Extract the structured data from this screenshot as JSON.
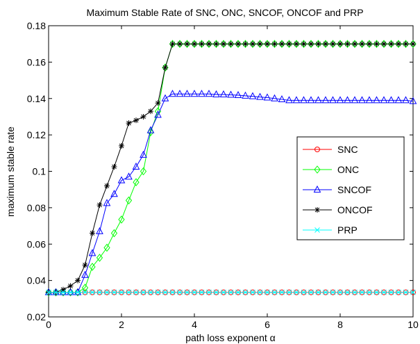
{
  "chart_data": {
    "type": "line",
    "title": "Maximum Stable Rate of SNC, ONC, SNCOF, ONCOF and PRP",
    "xlabel": "path loss exponent α",
    "ylabel": "maximum stable rate",
    "xlim": [
      0,
      10
    ],
    "ylim": [
      0.02,
      0.18
    ],
    "xticks": [
      "0",
      "2",
      "4",
      "6",
      "8",
      "10"
    ],
    "yticks": [
      "0.02",
      "0.04",
      "0.06",
      "0.08",
      "0.1",
      "0.12",
      "0.14",
      "0.16",
      "0.18"
    ],
    "grid": false,
    "legend_position": "right",
    "x": [
      0,
      0.2,
      0.4,
      0.6,
      0.8,
      1.0,
      1.2,
      1.4,
      1.6,
      1.8,
      2.0,
      2.2,
      2.4,
      2.6,
      2.8,
      3.0,
      3.2,
      3.4,
      3.6,
      3.8,
      4.0,
      4.2,
      4.4,
      4.6,
      4.8,
      5.0,
      5.2,
      5.4,
      5.6,
      5.8,
      6.0,
      6.2,
      6.4,
      6.6,
      6.8,
      7.0,
      7.2,
      7.4,
      7.6,
      7.8,
      8.0,
      8.2,
      8.4,
      8.6,
      8.8,
      9.0,
      9.2,
      9.4,
      9.6,
      9.8,
      10.0
    ],
    "series": [
      {
        "name": "SNC",
        "color": "#ff0000",
        "marker": "circle",
        "values": [
          0.0335,
          0.0335,
          0.0335,
          0.0335,
          0.0335,
          0.0335,
          0.0335,
          0.0335,
          0.0335,
          0.0335,
          0.0335,
          0.0335,
          0.0335,
          0.0335,
          0.0335,
          0.0335,
          0.0335,
          0.0335,
          0.0335,
          0.0335,
          0.0335,
          0.0335,
          0.0335,
          0.0335,
          0.0335,
          0.0335,
          0.0335,
          0.0335,
          0.0335,
          0.0335,
          0.0335,
          0.0335,
          0.0335,
          0.0335,
          0.0335,
          0.0335,
          0.0335,
          0.0335,
          0.0335,
          0.0335,
          0.0335,
          0.0335,
          0.0335,
          0.0335,
          0.0335,
          0.0335,
          0.0335,
          0.0335,
          0.0335,
          0.0335,
          0.0335
        ]
      },
      {
        "name": "ONC",
        "color": "#00ff00",
        "marker": "diamond",
        "values": [
          0.0335,
          0.0335,
          0.0335,
          0.0335,
          0.0335,
          0.036,
          0.0475,
          0.0525,
          0.058,
          0.066,
          0.0735,
          0.084,
          0.094,
          0.1,
          0.1215,
          0.133,
          0.157,
          0.17,
          0.17,
          0.17,
          0.17,
          0.17,
          0.17,
          0.17,
          0.17,
          0.17,
          0.17,
          0.17,
          0.17,
          0.17,
          0.17,
          0.17,
          0.17,
          0.17,
          0.17,
          0.17,
          0.17,
          0.17,
          0.17,
          0.17,
          0.17,
          0.17,
          0.17,
          0.17,
          0.17,
          0.17,
          0.17,
          0.17,
          0.17,
          0.17,
          0.17
        ]
      },
      {
        "name": "SNCOF",
        "color": "#0000ff",
        "marker": "triangle",
        "values": [
          0.0335,
          0.0335,
          0.0335,
          0.0335,
          0.0335,
          0.043,
          0.055,
          0.067,
          0.0825,
          0.0875,
          0.095,
          0.097,
          0.1025,
          0.109,
          0.1225,
          0.131,
          0.14,
          0.1425,
          0.1425,
          0.1425,
          0.1425,
          0.1425,
          0.1425,
          0.1422,
          0.1422,
          0.142,
          0.1418,
          0.1415,
          0.1412,
          0.1408,
          0.1405,
          0.14,
          0.1395,
          0.139,
          0.139,
          0.139,
          0.139,
          0.139,
          0.139,
          0.139,
          0.139,
          0.139,
          0.139,
          0.139,
          0.139,
          0.139,
          0.139,
          0.139,
          0.139,
          0.139,
          0.1385
        ]
      },
      {
        "name": "ONCOF",
        "color": "#000000",
        "marker": "star",
        "values": [
          0.0335,
          0.0335,
          0.035,
          0.037,
          0.04,
          0.0485,
          0.066,
          0.0815,
          0.092,
          0.1025,
          0.114,
          0.1265,
          0.128,
          0.13,
          0.133,
          0.1375,
          0.157,
          0.17,
          0.17,
          0.17,
          0.17,
          0.17,
          0.17,
          0.17,
          0.17,
          0.17,
          0.17,
          0.17,
          0.17,
          0.17,
          0.17,
          0.17,
          0.17,
          0.17,
          0.17,
          0.17,
          0.17,
          0.17,
          0.17,
          0.17,
          0.17,
          0.17,
          0.17,
          0.17,
          0.17,
          0.17,
          0.17,
          0.17,
          0.17,
          0.17,
          0.17
        ]
      },
      {
        "name": "PRP",
        "color": "#00ffff",
        "marker": "x",
        "values": [
          0.0335,
          0.0335,
          0.0335,
          0.0335,
          0.0335,
          0.0335,
          0.0335,
          0.0335,
          0.0335,
          0.0335,
          0.0335,
          0.0335,
          0.0335,
          0.0335,
          0.0335,
          0.0335,
          0.0335,
          0.0335,
          0.0335,
          0.0335,
          0.0335,
          0.0335,
          0.0335,
          0.0335,
          0.0335,
          0.0335,
          0.0335,
          0.0335,
          0.0335,
          0.0335,
          0.0335,
          0.0335,
          0.0335,
          0.0335,
          0.0335,
          0.0335,
          0.0335,
          0.0335,
          0.0335,
          0.0335,
          0.0335,
          0.0335,
          0.0335,
          0.0335,
          0.0335,
          0.0335,
          0.0335,
          0.0335,
          0.0335,
          0.0335,
          0.0335
        ]
      }
    ]
  }
}
